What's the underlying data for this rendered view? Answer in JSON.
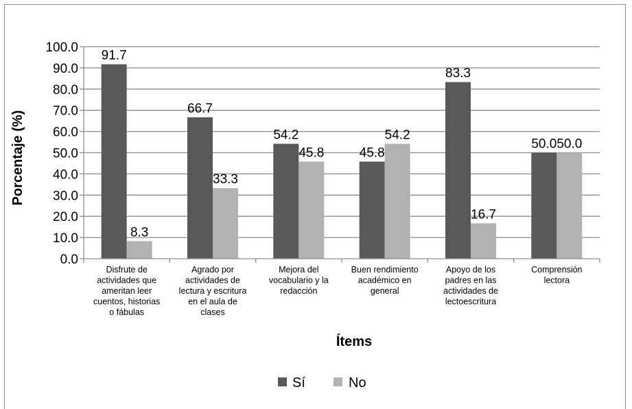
{
  "chart_data": {
    "type": "bar",
    "categories": [
      [
        "Disfrute de",
        "actividades que",
        "ameritan leer",
        "cuentos, historias",
        "o fábulas"
      ],
      [
        "Agrado por",
        "actividades de",
        "lectura y escritura",
        "en el aula de",
        "clases"
      ],
      [
        "Mejora del",
        "vocabulario y la",
        "redacción"
      ],
      [
        "Buen rendimiento",
        "académico en",
        "general"
      ],
      [
        "Apoyo de los",
        "padres en las",
        "actividades de",
        "lectoescritura"
      ],
      [
        "Comprensión",
        "lectora"
      ]
    ],
    "series": [
      {
        "name": "Sí",
        "color": "#595959",
        "values": [
          91.7,
          66.7,
          54.2,
          45.8,
          83.3,
          50.0
        ],
        "labels": [
          "91.7",
          "66.7",
          "54.2",
          "45.8",
          "83.3",
          "50.0"
        ]
      },
      {
        "name": "No",
        "color": "#b2b2b2",
        "values": [
          8.3,
          33.3,
          45.8,
          54.2,
          16.7,
          50.0
        ],
        "labels": [
          "8.3",
          "33.3",
          "45.8",
          "54.2",
          "16.7",
          "50.0"
        ]
      }
    ],
    "ylim": [
      0,
      100
    ],
    "yticks": [
      "0.0",
      "10.0",
      "20.0",
      "30.0",
      "40.0",
      "50.0",
      "60.0",
      "70.0",
      "80.0",
      "90.0",
      "100.0"
    ],
    "xlabel": "Ítems",
    "ylabel": "Porcentaje (%)",
    "grid": true,
    "legend": "bottom"
  }
}
